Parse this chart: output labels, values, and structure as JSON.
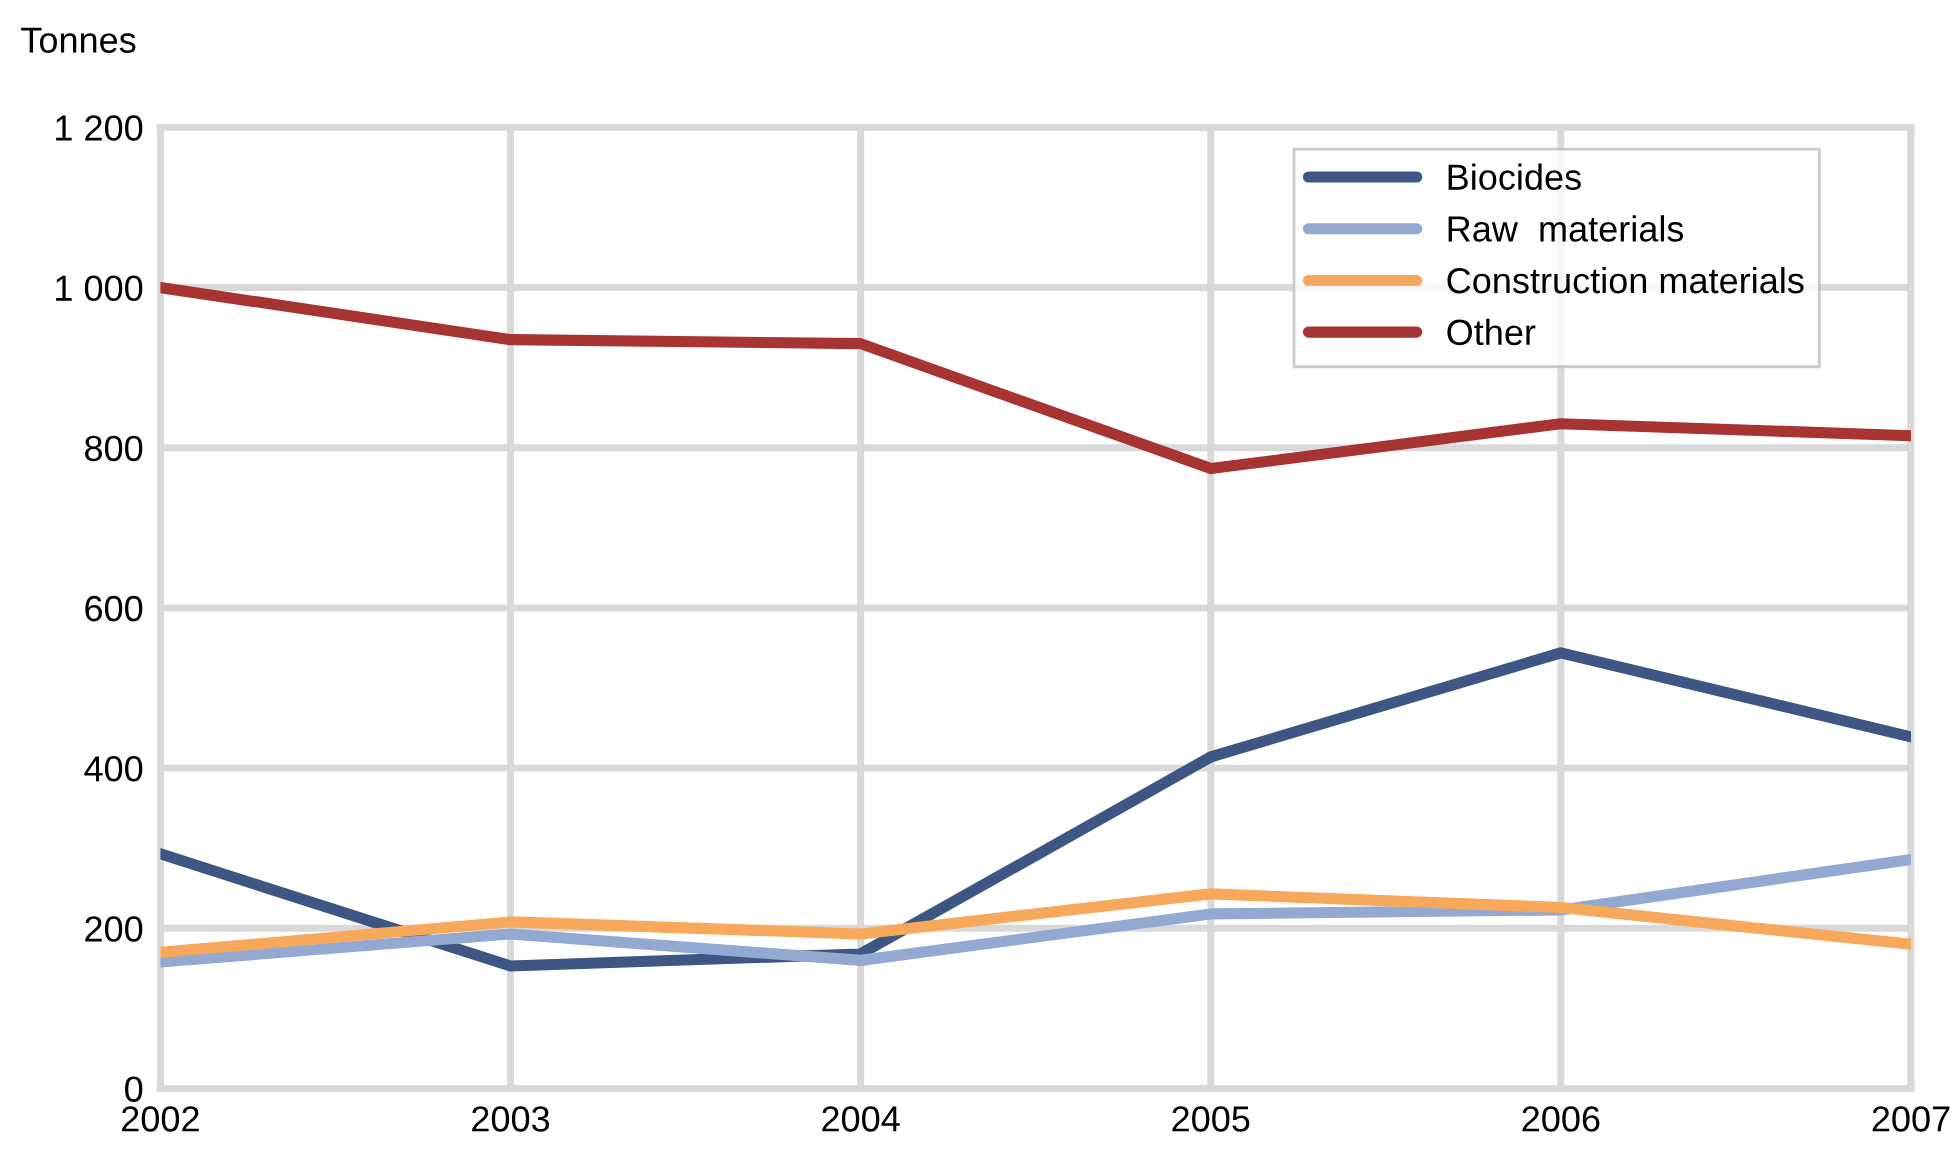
{
  "chart_data": {
    "type": "line",
    "ylabel": "Tonnes",
    "x": [
      2002,
      2003,
      2004,
      2005,
      2006,
      2007
    ],
    "series": [
      {
        "name": "Biocides",
        "color": "#3e5683",
        "values": [
          293,
          153,
          168,
          414,
          544,
          439
        ]
      },
      {
        "name": "Raw  materials",
        "color": "#94a9d2",
        "values": [
          158,
          193,
          160,
          218,
          223,
          286
        ]
      },
      {
        "name": "Construction materials",
        "color": "#f7a85a",
        "values": [
          170,
          208,
          193,
          243,
          226,
          180
        ]
      },
      {
        "name": "Other",
        "color": "#a83333",
        "values": [
          1000,
          935,
          930,
          774,
          830,
          815
        ]
      }
    ],
    "xlim": [
      2002,
      2007
    ],
    "xticks": [
      2002,
      2003,
      2004,
      2005,
      2006,
      2007
    ],
    "ylim": [
      0,
      1200
    ],
    "yticks": [
      0,
      200,
      400,
      600,
      800,
      {
        "value": 1000,
        "label": "1 000"
      },
      {
        "value": 1200,
        "label": "1 200"
      }
    ],
    "grid": true,
    "legend": "top right",
    "marker": "none",
    "line_style": "solid"
  }
}
